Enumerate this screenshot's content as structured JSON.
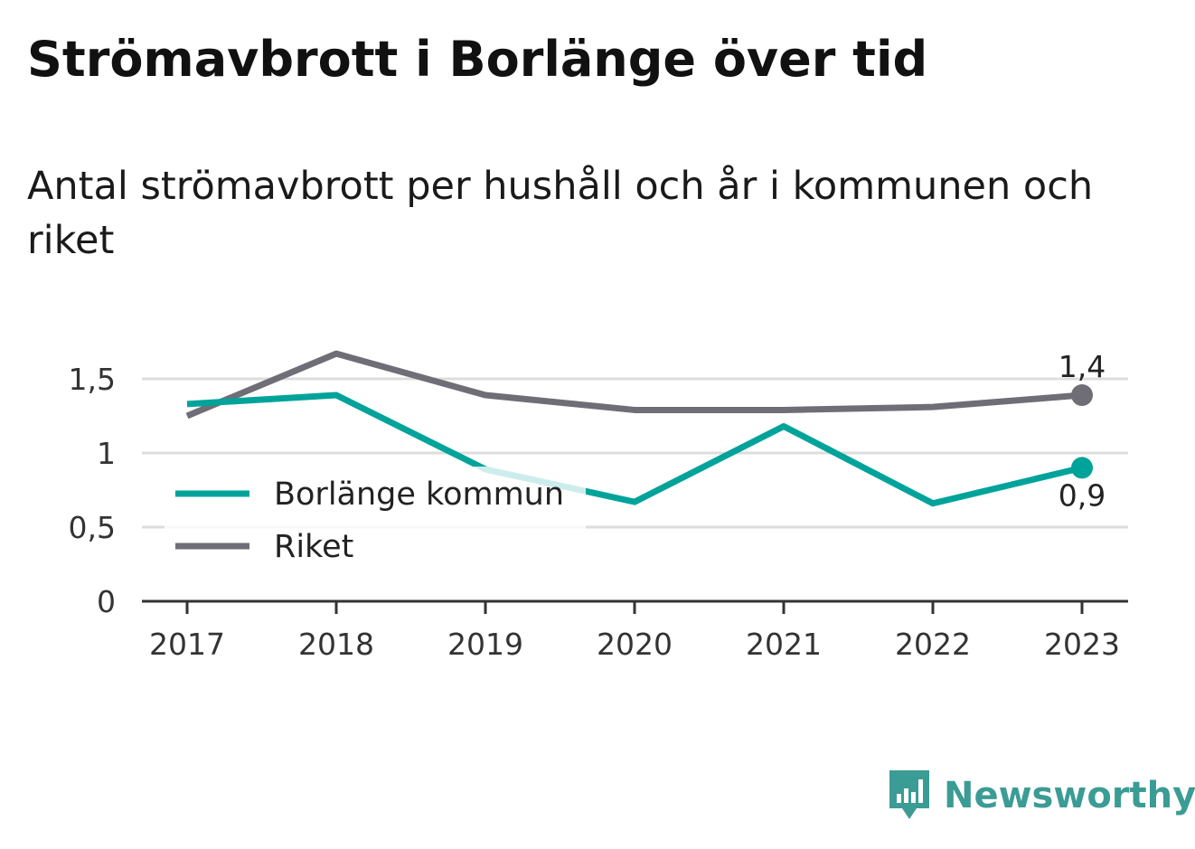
{
  "header": {
    "title": "Strömavbrott i Borlänge över tid",
    "subtitle": "Antal strömavbrott per hushåll och år i kommunen och riket"
  },
  "brand": {
    "name": "Newsworthy",
    "icon": "newsworthy-logo-icon",
    "color": "#3b9c95"
  },
  "chart_data": {
    "type": "line",
    "x": [
      "2017",
      "2018",
      "2019",
      "2020",
      "2021",
      "2022",
      "2023"
    ],
    "series": [
      {
        "name": "Borlänge kommun",
        "color": "#00a39a",
        "values": [
          1.33,
          1.39,
          0.89,
          0.67,
          1.18,
          0.66,
          0.9
        ]
      },
      {
        "name": "Riket",
        "color": "#6f6e76",
        "values": [
          1.25,
          1.67,
          1.39,
          1.29,
          1.29,
          1.31,
          1.39
        ]
      }
    ],
    "yticks": [
      {
        "value": 0,
        "label": "0"
      },
      {
        "value": 0.5,
        "label": "0,5"
      },
      {
        "value": 1,
        "label": "1"
      },
      {
        "value": 1.5,
        "label": "1,5"
      }
    ],
    "ylim": [
      0,
      1.7
    ],
    "end_labels": [
      "0,9",
      "1,4"
    ],
    "legend": {
      "position": "bottom-left"
    },
    "grid": true
  }
}
